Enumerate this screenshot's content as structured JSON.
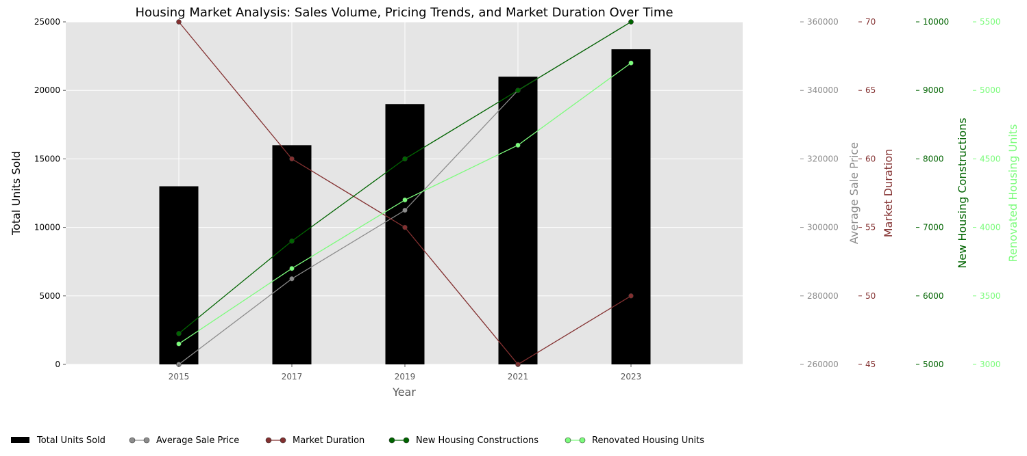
{
  "chart_data": {
    "type": "bar",
    "title": "Housing Market Analysis: Sales Volume, Pricing Trends, and Market Duration Over Time",
    "xlabel": "Year",
    "categories": [
      "2015",
      "2017",
      "2019",
      "2021",
      "2023"
    ],
    "grid": true,
    "legend_position": "bottom-left",
    "series": [
      {
        "name": "Total Units Sold",
        "kind": "bar",
        "axis": "Total Units Sold",
        "color": "#000000",
        "values": [
          13000,
          16000,
          19000,
          21000,
          23000
        ]
      },
      {
        "name": "Average Sale Price",
        "kind": "line",
        "axis": "Average Sale Price",
        "color": "#8c8c8c",
        "values": [
          260000,
          285000,
          305000,
          340000,
          360000
        ]
      },
      {
        "name": "Market Duration",
        "kind": "line",
        "axis": "Market Duration",
        "color": "#833030",
        "values": [
          70,
          60,
          55,
          45,
          50
        ]
      },
      {
        "name": "New Housing Constructions",
        "kind": "line",
        "axis": "New Housing Constructions",
        "color": "#006400",
        "values": [
          5450,
          6800,
          8000,
          9000,
          10000
        ]
      },
      {
        "name": "Renovated Housing Units",
        "kind": "line",
        "axis": "Renovated Housing Units",
        "color": "#7cfc7c",
        "values": [
          3150,
          3700,
          4200,
          4600,
          5200
        ]
      }
    ],
    "axes": {
      "left": {
        "label": "Total Units Sold",
        "ylim": [
          0,
          25000
        ],
        "ticks": [
          "0",
          "5000",
          "10000",
          "15000",
          "20000",
          "25000"
        ],
        "color": "#000000"
      },
      "right": [
        {
          "label": "Average Sale Price",
          "ylim": [
            260000,
            360000
          ],
          "ticks": [
            "260000",
            "280000",
            "300000",
            "320000",
            "340000",
            "360000"
          ],
          "color": "#8c8c8c"
        },
        {
          "label": "Market Duration",
          "ylim": [
            45,
            70
          ],
          "ticks": [
            "45",
            "50",
            "55",
            "60",
            "65",
            "70"
          ],
          "color": "#833030"
        },
        {
          "label": "New Housing Constructions",
          "ylim": [
            5000,
            10000
          ],
          "ticks": [
            "5000",
            "6000",
            "7000",
            "8000",
            "9000",
            "10000"
          ],
          "color": "#006400"
        },
        {
          "label": "Renovated Housing Units",
          "ylim": [
            3000,
            5500
          ],
          "ticks": [
            "3000",
            "3500",
            "4000",
            "4500",
            "5000",
            "5500"
          ],
          "color": "#7cfc7c"
        }
      ]
    }
  }
}
